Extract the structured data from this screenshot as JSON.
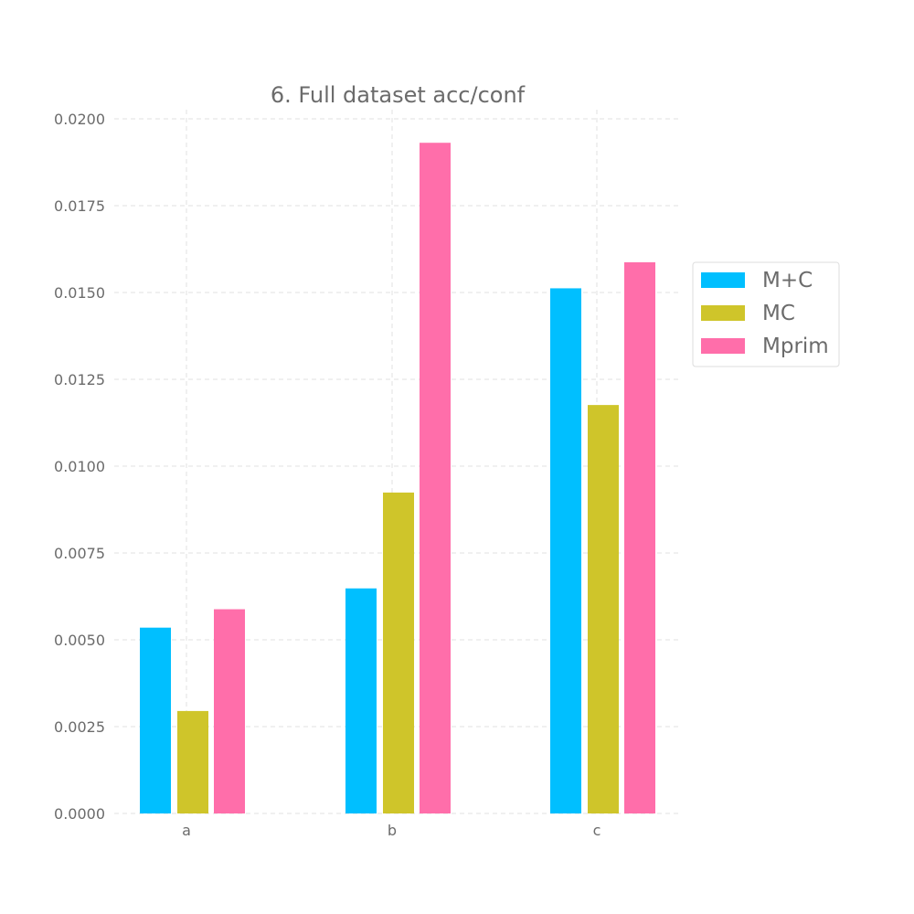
{
  "chart_data": {
    "type": "bar",
    "title": "6. Full dataset acc/conf",
    "xlabel": "",
    "ylabel": "",
    "categories": [
      "a",
      "b",
      "c"
    ],
    "series": [
      {
        "name": "M+C",
        "color": "#00bfff",
        "values": [
          0.00535,
          0.00648,
          0.01512
        ]
      },
      {
        "name": "MC",
        "color": "#cfc52a",
        "values": [
          0.00295,
          0.00924,
          0.01176
        ]
      },
      {
        "name": "Mprim",
        "color": "#ff6eaa",
        "values": [
          0.00588,
          0.01931,
          0.01587
        ]
      }
    ],
    "ylim": [
      0,
      0.0205
    ],
    "yticks": [
      "0.0000",
      "0.0025",
      "0.0050",
      "0.0075",
      "0.0100",
      "0.0125",
      "0.0150",
      "0.0175",
      "0.0200"
    ],
    "grid": true,
    "legend_position": "right"
  }
}
